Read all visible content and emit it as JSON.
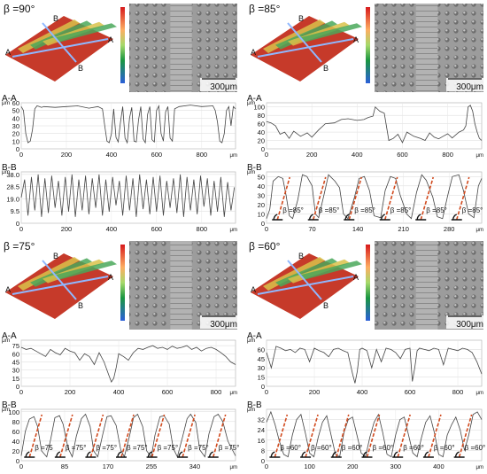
{
  "panels": [
    {
      "id": "p90",
      "title": "β =90°",
      "scale_bar": "300μm",
      "section_markers": [
        "A",
        "A",
        "B",
        "B"
      ],
      "unit_x": "μm",
      "unit_y": "μm"
    },
    {
      "id": "p85",
      "title": "β =85°",
      "scale_bar": "300μm",
      "section_markers": [
        "A",
        "A",
        "B",
        "B"
      ],
      "unit_x": "μm",
      "unit_y": "μm"
    },
    {
      "id": "p75",
      "title": "β =75°",
      "scale_bar": "300μm",
      "section_markers": [
        "A",
        "A",
        "B",
        "B"
      ],
      "unit_x": "μm",
      "unit_y": "μm"
    },
    {
      "id": "p60",
      "title": "β =60°",
      "scale_bar": "300μm",
      "section_markers": [
        "A",
        "A",
        "B",
        "B"
      ],
      "unit_x": "μm",
      "unit_y": "μm"
    }
  ],
  "chart_data": [
    {
      "id": "p90-AA",
      "type": "line",
      "title": "A-A",
      "x_ticks": [
        "0",
        "200",
        "400",
        "600",
        "800"
      ],
      "x_unit": "μm",
      "y_ticks": [
        "0",
        "10",
        "20",
        "30",
        "40",
        "50",
        "60"
      ],
      "y_unit": "μm",
      "xlim": [
        0,
        950
      ],
      "ylim": [
        0,
        60
      ],
      "x": [
        0,
        10,
        20,
        30,
        40,
        50,
        60,
        70,
        80,
        90,
        100,
        150,
        200,
        250,
        300,
        340,
        360,
        370,
        380,
        390,
        400,
        410,
        420,
        430,
        440,
        450,
        460,
        470,
        480,
        490,
        500,
        510,
        520,
        530,
        540,
        550,
        560,
        570,
        580,
        590,
        600,
        610,
        620,
        630,
        640,
        650,
        660,
        670,
        680,
        700,
        750,
        800,
        850,
        860,
        870,
        880,
        890,
        900,
        910,
        920,
        930,
        940,
        950
      ],
      "y": [
        55,
        50,
        20,
        8,
        10,
        25,
        52,
        56,
        55,
        54,
        55,
        54,
        55,
        56,
        53,
        55,
        52,
        30,
        10,
        8,
        20,
        52,
        15,
        9,
        35,
        55,
        14,
        8,
        40,
        54,
        10,
        9,
        38,
        55,
        13,
        8,
        45,
        55,
        12,
        9,
        50,
        56,
        20,
        10,
        48,
        55,
        14,
        10,
        52,
        55,
        57,
        55,
        56,
        50,
        35,
        10,
        8,
        20,
        50,
        55,
        30,
        55,
        52
      ]
    },
    {
      "id": "p90-BB",
      "type": "line",
      "title": "B-B",
      "x_ticks": [
        "0",
        "200",
        "400",
        "600",
        "800"
      ],
      "x_unit": "μm",
      "y_ticks": [
        "0",
        "9.5",
        "19.0",
        "28.5",
        "38.0"
      ],
      "y_unit": "μm",
      "xlim": [
        0,
        950
      ],
      "ylim": [
        0,
        40
      ],
      "x": [
        0,
        15,
        30,
        45,
        60,
        75,
        90,
        105,
        120,
        135,
        150,
        165,
        180,
        195,
        210,
        225,
        240,
        255,
        270,
        285,
        300,
        315,
        330,
        345,
        360,
        375,
        390,
        405,
        420,
        435,
        450,
        465,
        480,
        495,
        510,
        525,
        540,
        555,
        570,
        585,
        600,
        615,
        630,
        645,
        660,
        675,
        690,
        705,
        720,
        735,
        750,
        765,
        780,
        795,
        810,
        825,
        840,
        855,
        870,
        885,
        900,
        915,
        930,
        945
      ],
      "y": [
        20,
        34,
        6,
        36,
        10,
        38,
        5,
        35,
        8,
        37,
        12,
        33,
        6,
        36,
        9,
        38,
        5,
        34,
        10,
        37,
        7,
        35,
        12,
        38,
        6,
        34,
        9,
        36,
        14,
        33,
        6,
        37,
        10,
        35,
        5,
        38,
        11,
        34,
        7,
        36,
        9,
        37,
        6,
        33,
        12,
        35,
        8,
        38,
        5,
        36,
        10,
        34,
        7,
        37,
        13,
        35,
        6,
        33,
        9,
        36,
        5,
        32,
        10,
        28
      ]
    },
    {
      "id": "p85-AA",
      "type": "line",
      "title": "A-A",
      "x_ticks": [
        "0",
        "200",
        "400",
        "600",
        "800"
      ],
      "x_unit": "μm",
      "y_ticks": [
        "0",
        "20",
        "40",
        "60",
        "80",
        "100"
      ],
      "y_unit": "μm",
      "xlim": [
        0,
        950
      ],
      "ylim": [
        0,
        110
      ],
      "x": [
        0,
        20,
        40,
        60,
        80,
        100,
        120,
        150,
        180,
        200,
        230,
        260,
        300,
        330,
        360,
        400,
        430,
        450,
        470,
        480,
        500,
        520,
        540,
        560,
        580,
        600,
        620,
        650,
        680,
        700,
        720,
        740,
        760,
        780,
        800,
        820,
        850,
        870,
        880,
        890,
        900,
        910,
        920,
        930,
        940,
        950
      ],
      "y": [
        65,
        62,
        55,
        35,
        40,
        25,
        42,
        30,
        38,
        28,
        45,
        60,
        62,
        70,
        72,
        68,
        70,
        75,
        78,
        100,
        90,
        85,
        20,
        25,
        35,
        15,
        40,
        30,
        25,
        20,
        38,
        28,
        24,
        30,
        36,
        26,
        40,
        45,
        55,
        100,
        104,
        90,
        60,
        40,
        25,
        20
      ]
    },
    {
      "id": "p85-BB",
      "type": "line",
      "title": "B-B",
      "x_ticks": [
        "0",
        "70",
        "140",
        "210",
        "280"
      ],
      "x_unit": "μm",
      "y_ticks": [
        "0",
        "10",
        "20",
        "30",
        "40",
        "50"
      ],
      "y_unit": "μm",
      "xlim": [
        0,
        330
      ],
      "ylim": [
        0,
        55
      ],
      "x": [
        0,
        5,
        10,
        18,
        25,
        30,
        35,
        40,
        48,
        55,
        62,
        70,
        75,
        80,
        88,
        95,
        105,
        112,
        118,
        125,
        135,
        142,
        150,
        158,
        165,
        175,
        182,
        190,
        198,
        205,
        215,
        222,
        230,
        238,
        245,
        255,
        262,
        270,
        278,
        285,
        295,
        302,
        310,
        318,
        325,
        330
      ],
      "y": [
        5,
        15,
        45,
        50,
        48,
        30,
        8,
        5,
        25,
        52,
        50,
        40,
        10,
        6,
        30,
        52,
        45,
        38,
        10,
        5,
        28,
        48,
        50,
        35,
        8,
        6,
        35,
        50,
        48,
        30,
        10,
        5,
        33,
        52,
        46,
        28,
        7,
        5,
        30,
        50,
        52,
        35,
        10,
        6,
        40,
        48
      ],
      "series_labels": [
        "β =85°",
        "β =85°",
        "β =85°",
        "β =85°",
        "β =85°",
        "β =85°"
      ]
    },
    {
      "id": "p75-AA",
      "type": "line",
      "title": "A-A",
      "x_ticks": [
        "0",
        "200",
        "400",
        "600",
        "800"
      ],
      "x_unit": "μm",
      "y_ticks": [
        "0",
        "15",
        "30",
        "45",
        "60",
        "75"
      ],
      "y_unit": "μm",
      "xlim": [
        0,
        880
      ],
      "ylim": [
        0,
        85
      ],
      "x": [
        0,
        20,
        40,
        60,
        80,
        100,
        120,
        140,
        160,
        180,
        200,
        220,
        240,
        260,
        280,
        300,
        320,
        340,
        360,
        370,
        380,
        390,
        400,
        420,
        440,
        460,
        480,
        500,
        520,
        540,
        560,
        580,
        600,
        620,
        640,
        660,
        680,
        700,
        720,
        740,
        760,
        780,
        800,
        820,
        840,
        860,
        880
      ],
      "y": [
        72,
        68,
        70,
        65,
        60,
        55,
        68,
        62,
        58,
        70,
        65,
        62,
        48,
        60,
        55,
        40,
        62,
        45,
        20,
        8,
        15,
        35,
        60,
        55,
        48,
        62,
        70,
        68,
        72,
        75,
        70,
        72,
        68,
        74,
        70,
        72,
        75,
        68,
        72,
        65,
        70,
        72,
        68,
        62,
        55,
        45,
        40
      ]
    },
    {
      "id": "p75-BB",
      "type": "line",
      "title": "B-B",
      "x_ticks": [
        "0",
        "85",
        "170",
        "255",
        "340"
      ],
      "x_unit": "μm",
      "y_ticks": [
        "0",
        "20",
        "40",
        "60",
        "80",
        "100"
      ],
      "y_unit": "μm",
      "xlim": [
        0,
        420
      ],
      "ylim": [
        0,
        105
      ],
      "x": [
        0,
        8,
        16,
        25,
        32,
        40,
        50,
        58,
        66,
        75,
        82,
        92,
        100,
        108,
        118,
        126,
        135,
        142,
        150,
        160,
        168,
        176,
        186,
        195,
        202,
        212,
        220,
        228,
        238,
        246,
        255,
        262,
        272,
        280,
        290,
        298,
        306,
        316,
        325,
        332,
        342,
        350,
        360,
        368,
        378,
        386,
        395,
        405,
        415,
        420
      ],
      "y": [
        10,
        60,
        85,
        90,
        70,
        20,
        8,
        45,
        88,
        92,
        75,
        25,
        8,
        50,
        86,
        95,
        70,
        20,
        8,
        55,
        90,
        92,
        72,
        22,
        8,
        50,
        88,
        95,
        70,
        20,
        8,
        52,
        90,
        92,
        75,
        25,
        8,
        48,
        86,
        95,
        78,
        22,
        8,
        55,
        90,
        95,
        80,
        40,
        20,
        10
      ],
      "series_labels": [
        "β =75",
        "β =75°",
        "β =75°",
        "β =75°",
        "β =75°",
        "β =75°",
        "β =75°"
      ]
    },
    {
      "id": "p60-AA",
      "type": "line",
      "title": "A-A",
      "x_ticks": [
        "0",
        "200",
        "400",
        "600",
        "800"
      ],
      "x_unit": "μm",
      "y_ticks": [
        "0",
        "15",
        "30",
        "45",
        "60"
      ],
      "y_unit": "μm",
      "xlim": [
        0,
        900
      ],
      "ylim": [
        0,
        75
      ],
      "x": [
        0,
        20,
        40,
        60,
        80,
        100,
        120,
        140,
        160,
        180,
        200,
        220,
        240,
        260,
        280,
        300,
        320,
        340,
        360,
        370,
        380,
        390,
        400,
        420,
        440,
        460,
        480,
        500,
        520,
        540,
        560,
        580,
        600,
        610,
        620,
        630,
        640,
        660,
        680,
        700,
        720,
        740,
        760,
        780,
        800,
        820,
        840,
        860,
        880,
        900
      ],
      "y": [
        55,
        30,
        65,
        62,
        58,
        60,
        55,
        62,
        60,
        40,
        62,
        58,
        55,
        48,
        60,
        62,
        58,
        55,
        20,
        5,
        25,
        60,
        62,
        58,
        30,
        60,
        40,
        62,
        60,
        55,
        45,
        60,
        62,
        8,
        30,
        58,
        62,
        60,
        58,
        62,
        60,
        35,
        62,
        60,
        58,
        62,
        60,
        55,
        40,
        20
      ]
    },
    {
      "id": "p60-BB",
      "type": "line",
      "title": "B-B",
      "x_ticks": [
        "0",
        "100",
        "200",
        "300",
        "400"
      ],
      "x_unit": "μm",
      "y_ticks": [
        "0",
        "8",
        "16",
        "24",
        "32"
      ],
      "y_unit": "μm",
      "xlim": [
        0,
        500
      ],
      "ylim": [
        0,
        40
      ],
      "x": [
        0,
        10,
        20,
        30,
        40,
        50,
        60,
        70,
        80,
        90,
        100,
        110,
        120,
        130,
        140,
        150,
        160,
        170,
        180,
        190,
        200,
        210,
        220,
        230,
        240,
        250,
        260,
        270,
        280,
        290,
        300,
        310,
        320,
        330,
        340,
        350,
        360,
        370,
        380,
        390,
        400,
        410,
        420,
        430,
        440,
        450,
        460,
        470,
        480,
        490,
        500
      ],
      "y": [
        30,
        38,
        28,
        15,
        5,
        3,
        20,
        32,
        36,
        22,
        6,
        3,
        18,
        30,
        35,
        20,
        5,
        3,
        22,
        32,
        34,
        20,
        6,
        3,
        18,
        30,
        36,
        22,
        5,
        3,
        20,
        32,
        34,
        20,
        6,
        3,
        18,
        30,
        35,
        22,
        5,
        3,
        20,
        28,
        34,
        24,
        8,
        20,
        36,
        38,
        32
      ],
      "series_labels": [
        "β =60°",
        "β =60°",
        "β =60°",
        "β =60°",
        "β =60°",
        "β =60°",
        "β =60°"
      ]
    }
  ]
}
